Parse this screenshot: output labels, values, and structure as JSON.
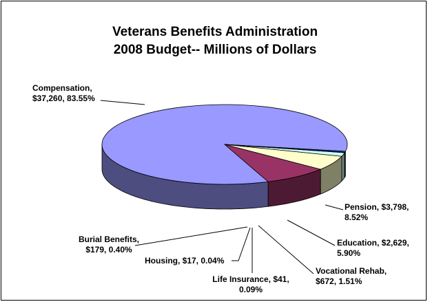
{
  "chart_data": {
    "type": "pie",
    "title_lines": [
      "Veterans Benefits Administration",
      "2008 Budget-- Millions of Dollars"
    ],
    "slices": [
      {
        "name": "Compensation",
        "value": 37260,
        "percent": 83.55,
        "color": "#9999ff",
        "label_lines": [
          "Compensation,",
          "$37,260, 83.55%"
        ]
      },
      {
        "name": "Pension",
        "value": 3798,
        "percent": 8.52,
        "color": "#993366",
        "label_lines": [
          "Pension, $3,798,",
          "8.52%"
        ]
      },
      {
        "name": "Education",
        "value": 2629,
        "percent": 5.9,
        "color": "#ffffcc",
        "label_lines": [
          "Education, $2,629,",
          "5.90%"
        ]
      },
      {
        "name": "Vocational Rehab",
        "value": 672,
        "percent": 1.51,
        "color": "#ccffff",
        "label_lines": [
          "Vocational Rehab,",
          "$672, 1.51%"
        ]
      },
      {
        "name": "Life Insurance",
        "value": 41,
        "percent": 0.09,
        "color": "#660066",
        "label_lines": [
          "Life Insurance, $41,",
          "0.09%"
        ]
      },
      {
        "name": "Housing",
        "value": 17,
        "percent": 0.04,
        "color": "#ff8080",
        "label_lines": [
          "Housing, $17, 0.04%"
        ]
      },
      {
        "name": "Burial Benefits",
        "value": 179,
        "percent": 0.4,
        "color": "#0066cc",
        "label_lines": [
          "Burial Benefits,",
          "$179, 0.40%"
        ]
      }
    ],
    "legend": "none"
  }
}
